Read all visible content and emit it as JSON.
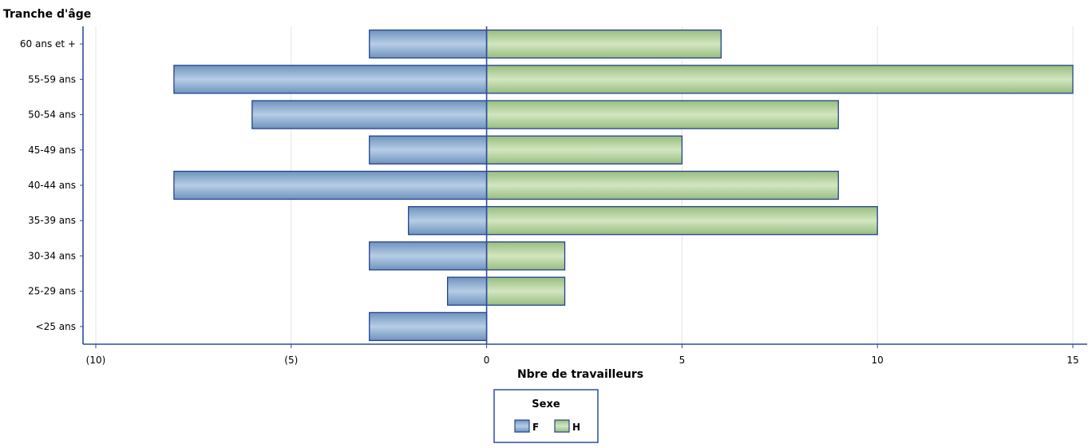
{
  "chart_data": {
    "type": "bar",
    "orientation": "horizontal",
    "stacked": "diverging",
    "ylabel": "Tranche d'âge",
    "xlabel": "Nbre de travailleurs",
    "categories": [
      "60 ans et +",
      "55-59 ans",
      "50-54 ans",
      "45-49 ans",
      "40-44 ans",
      "35-39 ans",
      "30-34 ans",
      "25-29 ans",
      "<25 ans"
    ],
    "series": [
      {
        "name": "F",
        "values": [
          -3,
          -8,
          -6,
          -3,
          -8,
          -2,
          -3,
          -1,
          -3
        ],
        "color": "#8fb0d3"
      },
      {
        "name": "H",
        "values": [
          6,
          15,
          9,
          5,
          9,
          10,
          2,
          2,
          0
        ],
        "color": "#b5d39c"
      }
    ],
    "xlim": [
      -10,
      15
    ],
    "xticks": [
      -10,
      -5,
      0,
      5,
      10,
      15
    ],
    "xtick_labels": [
      "(10)",
      "(5)",
      "0",
      "5",
      "10",
      "15"
    ],
    "grid": true,
    "legend": {
      "title": "Sexe",
      "position": "bottom-center"
    },
    "colors": {
      "axis": "#2b4e9e",
      "bar_outline": "#24438f",
      "grid": "#e4e4e4"
    }
  }
}
